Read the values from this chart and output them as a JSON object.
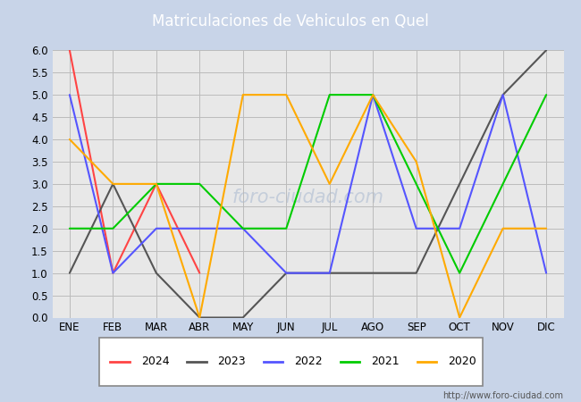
{
  "title": "Matriculaciones de Vehiculos en Quel",
  "months": [
    "ENE",
    "FEB",
    "MAR",
    "ABR",
    "MAY",
    "JUN",
    "JUL",
    "AGO",
    "SEP",
    "OCT",
    "NOV",
    "DIC"
  ],
  "series": {
    "2024": {
      "color": "#ff4444",
      "values": [
        6,
        1,
        3,
        1,
        null,
        null,
        null,
        null,
        null,
        null,
        null,
        null
      ]
    },
    "2023": {
      "color": "#555555",
      "values": [
        1,
        3,
        1,
        0,
        0,
        1,
        1,
        1,
        1,
        3,
        5,
        6
      ]
    },
    "2022": {
      "color": "#5555ff",
      "values": [
        5,
        1,
        2,
        2,
        2,
        1,
        1,
        5,
        2,
        2,
        5,
        1
      ]
    },
    "2021": {
      "color": "#00cc00",
      "values": [
        2,
        2,
        3,
        3,
        2,
        2,
        5,
        5,
        3,
        1,
        3,
        5
      ]
    },
    "2020": {
      "color": "#ffaa00",
      "values": [
        4,
        3,
        3,
        0,
        5,
        5,
        3,
        5,
        3.5,
        0,
        2,
        2
      ]
    }
  },
  "ylim": [
    0,
    6
  ],
  "yticks": [
    0.0,
    0.5,
    1.0,
    1.5,
    2.0,
    2.5,
    3.0,
    3.5,
    4.0,
    4.5,
    5.0,
    5.5,
    6.0
  ],
  "outer_bg": "#c8d4e8",
  "plot_bg": "#e8e8e8",
  "title_bg": "#4472c4",
  "title_color": "#ffffff",
  "grid_color": "#bbbbbb",
  "url": "http://www.foro-ciudad.com"
}
